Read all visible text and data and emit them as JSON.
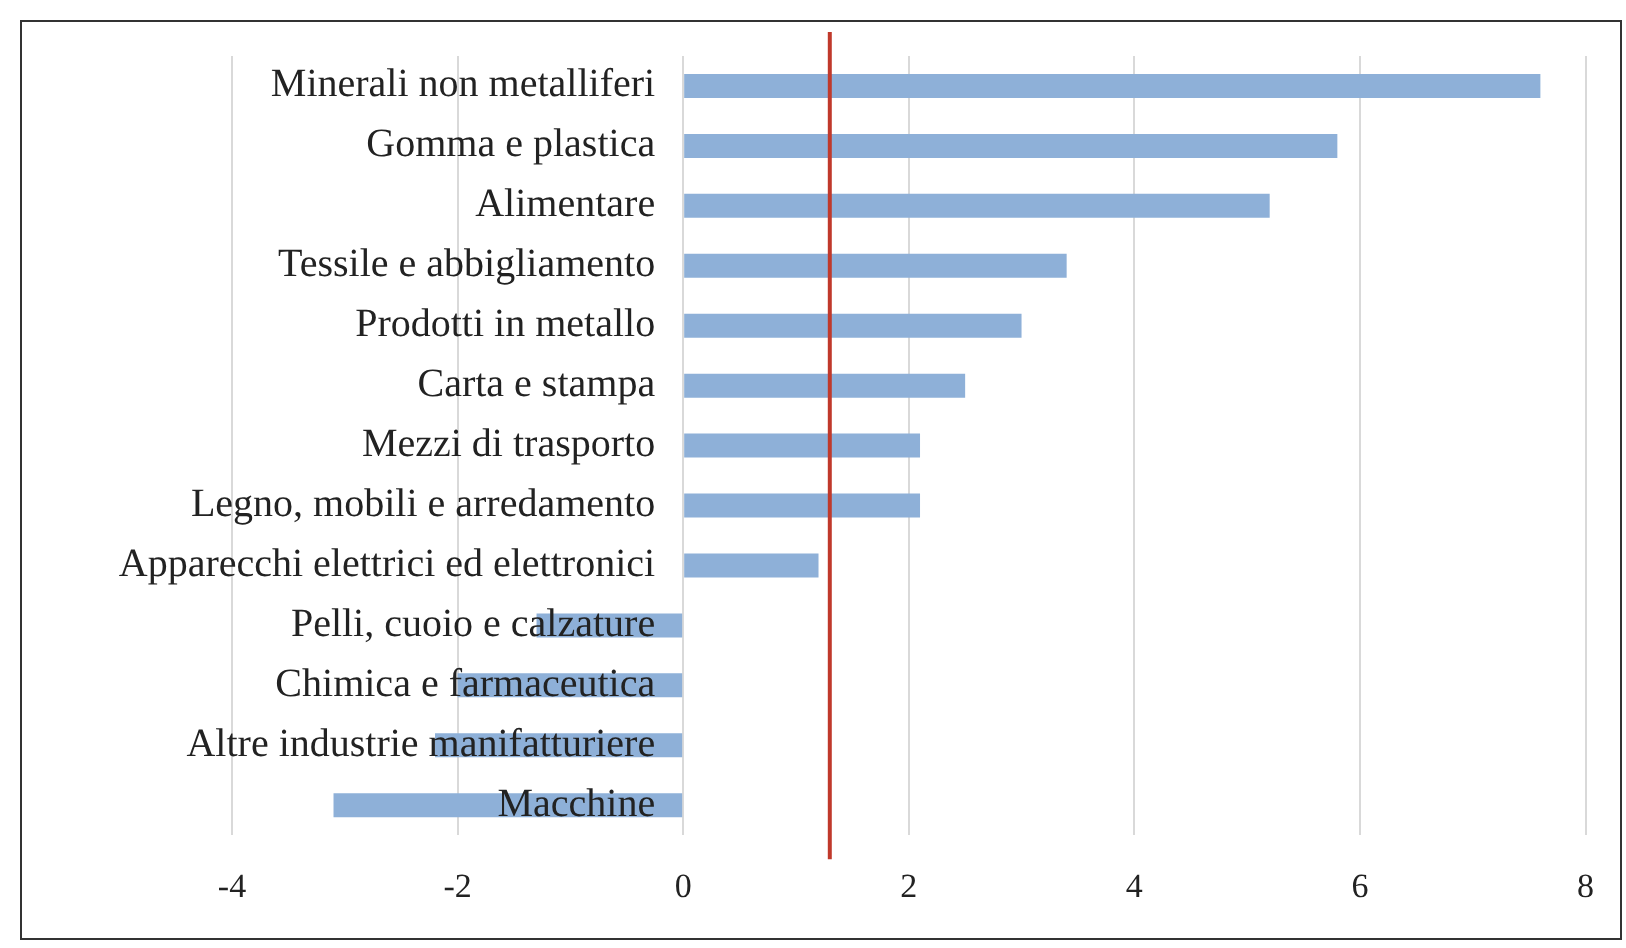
{
  "chart_data": {
    "type": "bar",
    "orientation": "horizontal",
    "categories": [
      "Minerali non metalliferi",
      "Gomma e plastica",
      "Alimentare",
      "Tessile e abbigliamento",
      "Prodotti in metallo",
      "Carta e stampa",
      "Mezzi di trasporto",
      "Legno, mobili e arredamento",
      "Apparecchi elettrici ed elettronici",
      "Pelli, cuoio e calzature",
      "Chimica e farmaceutica",
      "Altre industrie manifatturiere",
      "Macchine"
    ],
    "values": [
      7.6,
      5.8,
      5.2,
      3.4,
      3.0,
      2.5,
      2.1,
      2.1,
      1.2,
      -1.3,
      -2.0,
      -2.2,
      -3.1
    ],
    "color": "#8eb0d8",
    "xlim": [
      -4,
      8
    ],
    "xticks": [
      -4,
      -2,
      0,
      2,
      4,
      6,
      8
    ],
    "grid": "x",
    "legend": false,
    "ref_lines": [
      {
        "axis": "x",
        "value": 1.3,
        "color": "#c0392b"
      }
    ]
  }
}
